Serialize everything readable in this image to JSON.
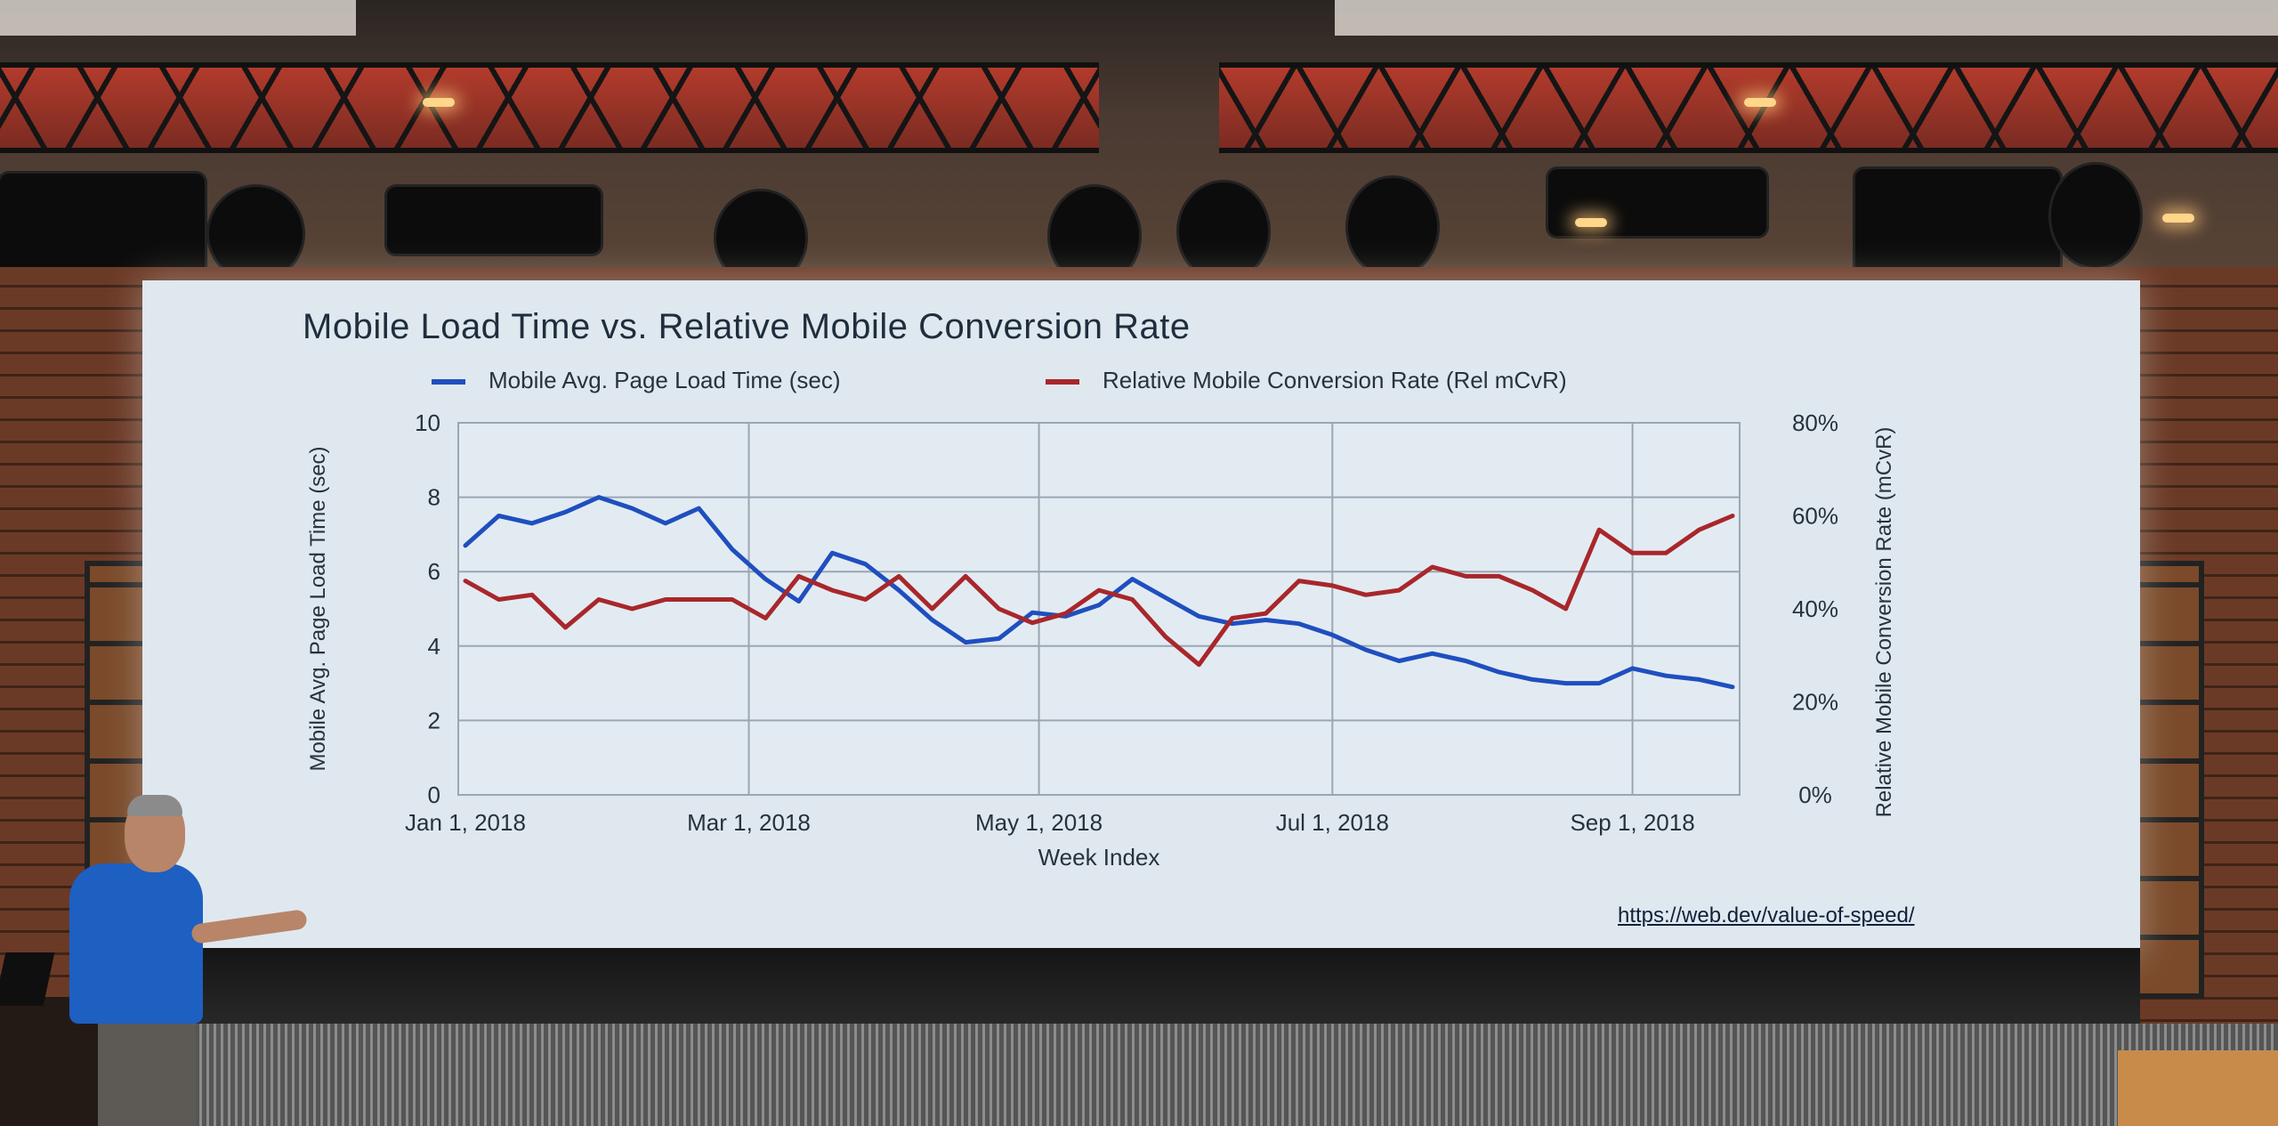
{
  "slide": {
    "title": "Mobile Load Time vs. Relative Mobile Conversion Rate",
    "url": "https://web.dev/value-of-speed/"
  },
  "colors": {
    "load_time": "#1f4fbf",
    "conversion": "#a8272b",
    "screen": "#dfe8ef"
  },
  "chart_data": {
    "type": "line",
    "title": "Mobile Load Time vs. Relative Mobile Conversion Rate",
    "xlabel": "Week Index",
    "ylabel_left": "Mobile Avg. Page Load Time (sec)",
    "ylabel_right": "Relative Mobile Conversion Rate (mCvR)",
    "x_ticks": [
      "Jan 1, 2018",
      "Mar 1, 2018",
      "May 1, 2018",
      "Jul 1, 2018",
      "Sep 1, 2018"
    ],
    "y_left_ticks": [
      "0",
      "2",
      "4",
      "6",
      "8",
      "10"
    ],
    "y_right_ticks": [
      "0%",
      "20%",
      "40%",
      "60%",
      "80%"
    ],
    "ylim_left": [
      0,
      10
    ],
    "ylim_right": [
      0,
      80
    ],
    "legend": "top",
    "grid": true,
    "series": [
      {
        "name": "Mobile Avg. Page Load Time (sec)",
        "axis": "left",
        "values": [
          6.7,
          7.5,
          7.3,
          7.6,
          8.0,
          7.7,
          7.3,
          7.7,
          6.6,
          5.8,
          5.2,
          6.5,
          6.2,
          5.5,
          4.7,
          4.1,
          4.2,
          4.9,
          4.8,
          5.1,
          5.8,
          5.3,
          4.8,
          4.6,
          4.7,
          4.6,
          4.3,
          3.9,
          3.6,
          3.8,
          3.6,
          3.3,
          3.1,
          3.0,
          3.0,
          3.4,
          3.2,
          3.1,
          2.9
        ]
      },
      {
        "name": "Relative Mobile Conversion Rate (Rel mCvR)",
        "axis": "right",
        "values": [
          46,
          42,
          43,
          36,
          42,
          40,
          42,
          42,
          42,
          38,
          47,
          44,
          42,
          47,
          40,
          47,
          40,
          37,
          39,
          44,
          42,
          34,
          28,
          38,
          39,
          46,
          45,
          43,
          44,
          49,
          47,
          47,
          44,
          40,
          57,
          52,
          52,
          57,
          60
        ]
      }
    ]
  }
}
